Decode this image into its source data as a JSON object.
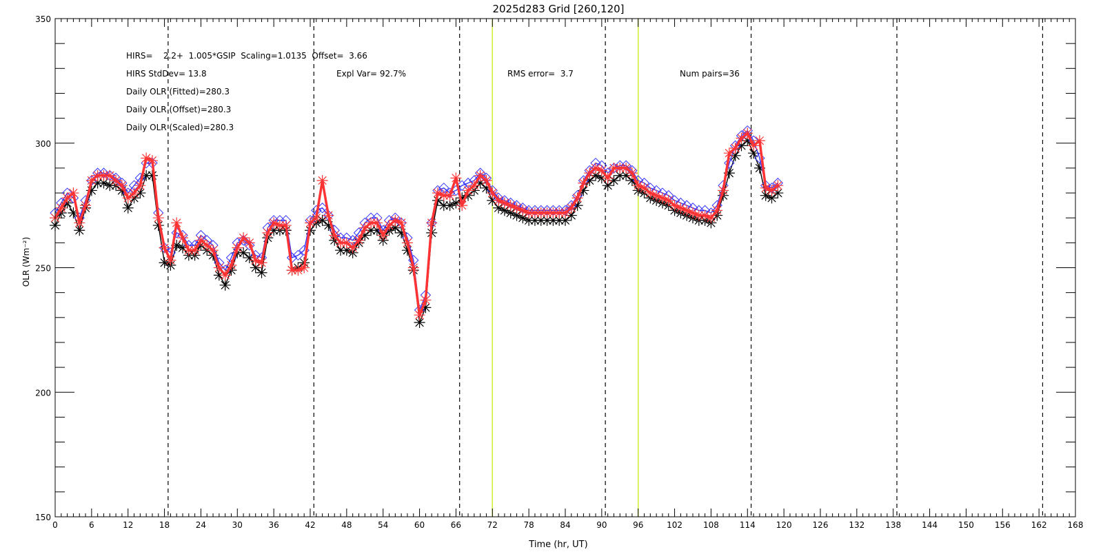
{
  "chart_data": {
    "type": "line",
    "title": "2025d283 Grid [260,120]",
    "xlabel": "Time (hr, UT)",
    "ylabel": "OLR (Wm⁻²)",
    "xlim": [
      0,
      168
    ],
    "ylim": [
      150,
      350
    ],
    "x_ticks": [
      0,
      6,
      12,
      18,
      24,
      30,
      36,
      42,
      48,
      54,
      60,
      66,
      72,
      78,
      84,
      90,
      96,
      102,
      108,
      114,
      120,
      126,
      132,
      138,
      144,
      150,
      156,
      162,
      168
    ],
    "y_ticks": [
      150,
      200,
      250,
      300,
      350
    ],
    "annotations": [
      "HIRS=    2.2+  1.005*GSIP  Scaling=1.0135  Offset=  3.66",
      "HIRS StdDev= 13.8",
      "Expl Var= 92.7%",
      "RMS error=  3.7",
      "Num pairs=36",
      "Daily OLR (Fitted)=280.3",
      "Daily OLR (Offset)=280.3",
      "Daily OLR (Scaled)=280.3"
    ],
    "vlines_dashed": [
      18.6,
      42.6,
      66.6,
      90.6,
      114.6,
      138.6,
      162.6
    ],
    "vlines_solid": [
      72,
      96
    ],
    "vline_solid_color": "#ccee33",
    "series": [
      {
        "marker": "asterisk",
        "color": "#000000",
        "x": [
          0,
          1,
          2,
          3,
          4,
          5,
          6,
          7,
          8,
          9,
          10,
          11,
          12,
          13,
          14,
          15,
          16,
          17,
          18,
          19,
          20,
          21,
          22,
          23,
          24,
          25,
          26,
          27,
          28,
          29,
          30,
          31,
          32,
          33,
          34,
          35,
          36,
          37,
          38,
          39,
          40,
          41,
          42,
          43,
          44,
          45,
          46,
          47,
          48,
          49,
          50,
          51,
          52,
          53,
          54,
          55,
          56,
          57,
          58,
          59,
          60,
          61,
          62,
          63,
          64,
          65,
          66,
          67,
          68,
          69,
          70,
          71,
          72,
          73,
          74,
          75,
          76,
          77,
          78,
          79,
          80,
          81,
          82,
          83,
          84,
          85,
          86,
          87,
          88,
          89,
          90,
          91,
          92,
          93,
          94,
          95,
          96,
          97,
          98,
          99,
          100,
          101,
          102,
          103,
          104,
          105,
          106,
          107,
          108,
          109,
          110,
          111,
          112,
          113,
          114,
          115,
          116,
          117,
          118,
          119
        ],
        "y": [
          267,
          272,
          276,
          272,
          265,
          274,
          281,
          284,
          284,
          283,
          283,
          281,
          274,
          278,
          280,
          287,
          287,
          267,
          252,
          251,
          259,
          258,
          255,
          255,
          259,
          257,
          255,
          247,
          243,
          249,
          256,
          256,
          254,
          250,
          248,
          262,
          265,
          265,
          265,
          249,
          250,
          252,
          265,
          268,
          269,
          267,
          261,
          257,
          257,
          256,
          260,
          263,
          265,
          265,
          261,
          265,
          266,
          264,
          257,
          249,
          228,
          234,
          264,
          277,
          275,
          275,
          276,
          278,
          279,
          281,
          284,
          282,
          277,
          274,
          273,
          272,
          271,
          270,
          269,
          269,
          269,
          269,
          269,
          269,
          269,
          271,
          275,
          281,
          285,
          287,
          286,
          283,
          285,
          287,
          287,
          285,
          281,
          280,
          278,
          277,
          276,
          275,
          273,
          272,
          271,
          270,
          269,
          269,
          268,
          271,
          279,
          288,
          295,
          299,
          301,
          296,
          290,
          279,
          278,
          280
        ]
      },
      {
        "marker": "diamond",
        "color": "#3333ff",
        "x": [
          0,
          1,
          2,
          3,
          4,
          5,
          6,
          7,
          8,
          9,
          10,
          11,
          12,
          13,
          14,
          15,
          16,
          17,
          18,
          19,
          20,
          21,
          22,
          23,
          24,
          25,
          26,
          27,
          28,
          29,
          30,
          31,
          32,
          33,
          34,
          35,
          36,
          37,
          38,
          39,
          40,
          41,
          42,
          43,
          44,
          45,
          46,
          47,
          48,
          49,
          50,
          51,
          52,
          53,
          54,
          55,
          56,
          57,
          58,
          59,
          60,
          61,
          62,
          63,
          64,
          65,
          66,
          67,
          68,
          69,
          70,
          71,
          72,
          73,
          74,
          75,
          76,
          77,
          78,
          79,
          80,
          81,
          82,
          83,
          84,
          85,
          86,
          87,
          88,
          89,
          90,
          91,
          92,
          93,
          94,
          95,
          96,
          97,
          98,
          99,
          100,
          101,
          102,
          103,
          104,
          105,
          106,
          107,
          108,
          109,
          110,
          111,
          112,
          113,
          114,
          115,
          116,
          117,
          118,
          119
        ],
        "y": [
          272,
          276,
          280,
          278,
          270,
          277,
          285,
          288,
          288,
          287,
          286,
          284,
          280,
          283,
          286,
          292,
          292,
          272,
          258,
          256,
          264,
          263,
          259,
          259,
          263,
          261,
          259,
          252,
          249,
          254,
          260,
          261,
          259,
          255,
          254,
          266,
          269,
          269,
          269,
          254,
          255,
          257,
          269,
          273,
          274,
          271,
          265,
          262,
          262,
          261,
          264,
          268,
          270,
          270,
          265,
          269,
          270,
          268,
          262,
          253,
          233,
          239,
          268,
          281,
          282,
          280,
          281,
          283,
          284,
          285,
          288,
          286,
          281,
          278,
          277,
          276,
          275,
          274,
          273,
          273,
          273,
          273,
          273,
          273,
          273,
          275,
          279,
          285,
          289,
          292,
          291,
          288,
          290,
          291,
          291,
          289,
          285,
          284,
          282,
          281,
          280,
          279,
          277,
          276,
          275,
          274,
          273,
          273,
          272,
          275,
          283,
          292,
          299,
          303,
          305,
          301,
          294,
          283,
          282,
          284
        ]
      },
      {
        "marker": "asterisk",
        "color": "#ff3333",
        "x": [
          0,
          1,
          2,
          3,
          4,
          5,
          6,
          7,
          8,
          9,
          10,
          11,
          12,
          13,
          14,
          15,
          16,
          17,
          18,
          19,
          20,
          21,
          22,
          23,
          24,
          25,
          26,
          27,
          28,
          29,
          30,
          31,
          32,
          33,
          34,
          35,
          36,
          37,
          38,
          39,
          40,
          41,
          42,
          43,
          44,
          45,
          46,
          47,
          48,
          49,
          50,
          51,
          52,
          53,
          54,
          55,
          56,
          57,
          58,
          59,
          60,
          61,
          62,
          63,
          64,
          65,
          66,
          67,
          68,
          69,
          70,
          71,
          72,
          73,
          74,
          75,
          76,
          77,
          78,
          79,
          80,
          81,
          82,
          83,
          84,
          85,
          86,
          87,
          88,
          89,
          90,
          91,
          92,
          93,
          94,
          95,
          96,
          97,
          98,
          99,
          100,
          101,
          102,
          103,
          104,
          105,
          106,
          107,
          108,
          109,
          110,
          111,
          112,
          113,
          114,
          115,
          116,
          117,
          118,
          119
        ],
        "y": [
          270,
          274,
          278,
          280,
          268,
          275,
          285,
          287,
          287,
          287,
          285,
          283,
          278,
          280,
          283,
          294,
          293,
          270,
          258,
          253,
          268,
          262,
          257,
          257,
          261,
          259,
          257,
          250,
          247,
          251,
          258,
          262,
          260,
          253,
          252,
          264,
          268,
          267,
          267,
          249,
          249,
          250,
          268,
          270,
          285,
          271,
          263,
          260,
          260,
          258,
          261,
          266,
          268,
          268,
          263,
          267,
          269,
          268,
          260,
          250,
          231,
          237,
          268,
          280,
          279,
          279,
          286,
          275,
          281,
          283,
          287,
          285,
          280,
          277,
          276,
          275,
          274,
          273,
          272,
          272,
          272,
          272,
          272,
          272,
          272,
          274,
          278,
          284,
          288,
          290,
          289,
          286,
          290,
          290,
          290,
          288,
          283,
          282,
          280,
          279,
          278,
          277,
          275,
          274,
          273,
          272,
          271,
          271,
          270,
          273,
          281,
          296,
          298,
          302,
          304,
          299,
          301,
          282,
          281,
          283
        ]
      }
    ]
  }
}
